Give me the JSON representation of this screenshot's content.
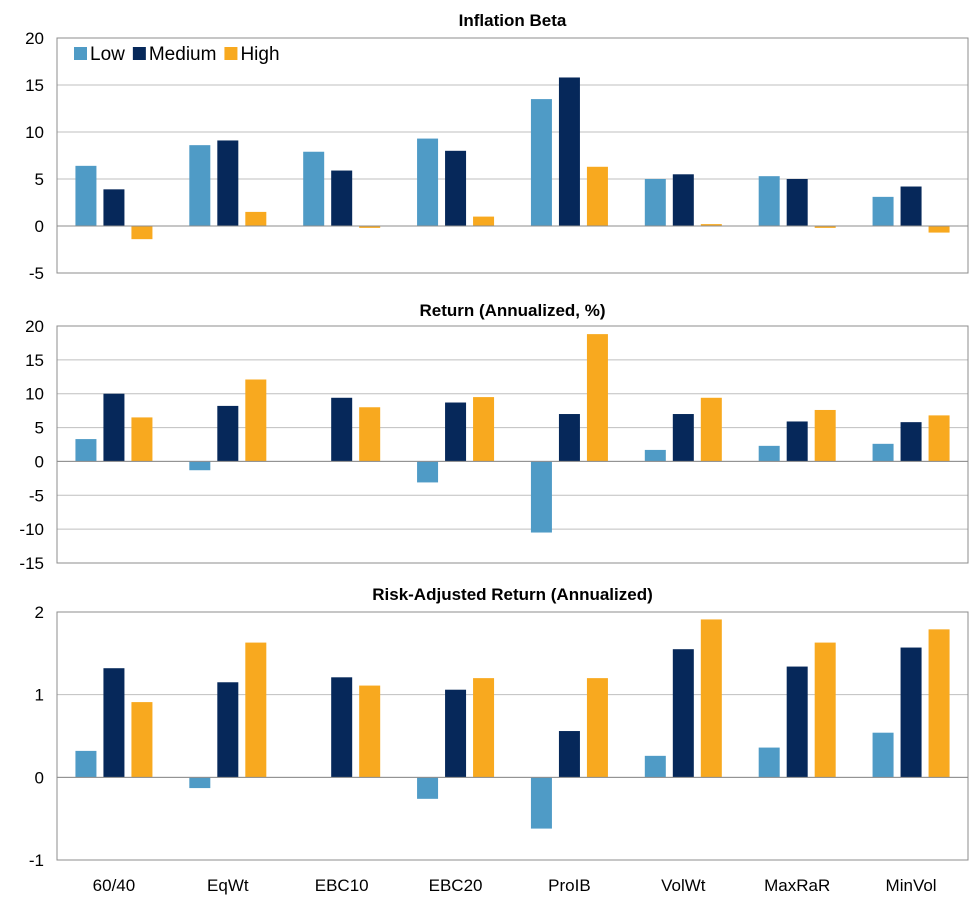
{
  "chart_data": [
    {
      "type": "bar",
      "title": "Inflation Beta",
      "categories": [
        "60/40",
        "EqWt",
        "EBC10",
        "EBC20",
        "ProIB",
        "VolWt",
        "MaxRaR",
        "MinVol"
      ],
      "series": [
        {
          "name": "Low",
          "values": [
            6.4,
            8.6,
            7.9,
            9.3,
            13.5,
            5.0,
            5.3,
            3.1
          ]
        },
        {
          "name": "Medium",
          "values": [
            3.9,
            9.1,
            5.9,
            8.0,
            15.8,
            5.5,
            5.0,
            4.2
          ]
        },
        {
          "name": "High",
          "values": [
            -1.4,
            1.5,
            -0.2,
            1.0,
            6.3,
            0.2,
            -0.2,
            -0.7
          ]
        }
      ],
      "ylim": [
        -5,
        20
      ],
      "yticks": [
        "20",
        "15",
        "10",
        "5",
        "0",
        "-5"
      ],
      "legend": "top-left",
      "grid": true
    },
    {
      "type": "bar",
      "title": "Return (Annualized, %)",
      "categories": [
        "60/40",
        "EqWt",
        "EBC10",
        "EBC20",
        "ProIB",
        "VolWt",
        "MaxRaR",
        "MinVol"
      ],
      "series": [
        {
          "name": "Low",
          "values": [
            3.3,
            -1.3,
            0,
            -3.1,
            -10.5,
            1.7,
            2.3,
            2.6
          ]
        },
        {
          "name": "Medium",
          "values": [
            10.0,
            8.2,
            9.4,
            8.7,
            7.0,
            7.0,
            5.9,
            5.8
          ]
        },
        {
          "name": "High",
          "values": [
            6.5,
            12.1,
            8.0,
            9.5,
            18.8,
            9.4,
            7.6,
            6.8
          ]
        }
      ],
      "ylim": [
        -15,
        20
      ],
      "yticks": [
        "20",
        "15",
        "10",
        "5",
        "0",
        "-5",
        "-10",
        "-15"
      ],
      "grid": true
    },
    {
      "type": "bar",
      "title": "Risk-Adjusted Return (Annualized)",
      "categories": [
        "60/40",
        "EqWt",
        "EBC10",
        "EBC20",
        "ProIB",
        "VolWt",
        "MaxRaR",
        "MinVol"
      ],
      "series": [
        {
          "name": "Low",
          "values": [
            0.32,
            -0.13,
            0,
            -0.26,
            -0.62,
            0.26,
            0.36,
            0.54
          ]
        },
        {
          "name": "Medium",
          "values": [
            1.32,
            1.15,
            1.21,
            1.06,
            0.56,
            1.55,
            1.34,
            1.57
          ]
        },
        {
          "name": "High",
          "values": [
            0.91,
            1.63,
            1.11,
            1.2,
            1.2,
            1.91,
            1.63,
            1.79
          ]
        }
      ],
      "ylim": [
        -1,
        2
      ],
      "yticks": [
        "2",
        "1",
        "0",
        "-1"
      ],
      "grid": true
    }
  ],
  "colors": {
    "Low": "#4f9bc6",
    "Medium": "#06285a",
    "High": "#f8a91f",
    "grid": "#bfbfbf",
    "frame": "#8c8c8c"
  }
}
